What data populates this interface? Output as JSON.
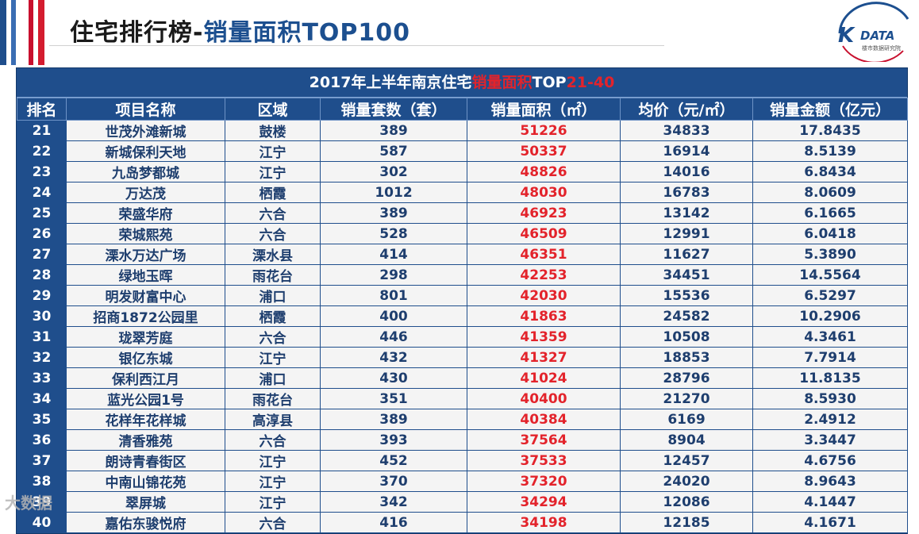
{
  "header": {
    "title_part1": "住宅排行榜-",
    "title_part2": "销量面积TOP100"
  },
  "logo": {
    "mark": "K",
    "word": "DATA",
    "subtitle": "楼市数据研究院"
  },
  "table": {
    "caption_part1": "2017年上半年南京住宅",
    "caption_part2": "销量面积",
    "caption_part3": "TOP",
    "caption_part4": "21-40",
    "columns": [
      "排名",
      "项目名称",
      "区域",
      "销量套数（套）",
      "销量面积（㎡）",
      "均价（元/㎡）",
      "销量金额（亿元）"
    ],
    "rows": [
      [
        "21",
        "世茂外滩新城",
        "鼓楼",
        "389",
        "51226",
        "34833",
        "17.8435"
      ],
      [
        "22",
        "新城保利天地",
        "江宁",
        "587",
        "50337",
        "16914",
        "8.5139"
      ],
      [
        "23",
        "九岛梦都城",
        "江宁",
        "302",
        "48826",
        "14016",
        "6.8434"
      ],
      [
        "24",
        "万达茂",
        "栖霞",
        "1012",
        "48030",
        "16783",
        "8.0609"
      ],
      [
        "25",
        "荣盛华府",
        "六合",
        "389",
        "46923",
        "13142",
        "6.1665"
      ],
      [
        "26",
        "荣城熙苑",
        "六合",
        "528",
        "46509",
        "12991",
        "6.0418"
      ],
      [
        "27",
        "溧水万达广场",
        "溧水县",
        "414",
        "46351",
        "11627",
        "5.3890"
      ],
      [
        "28",
        "绿地玉晖",
        "雨花台",
        "298",
        "42253",
        "34451",
        "14.5564"
      ],
      [
        "29",
        "明发财富中心",
        "浦口",
        "801",
        "42030",
        "15536",
        "6.5297"
      ],
      [
        "30",
        "招商1872公园里",
        "栖霞",
        "400",
        "41863",
        "24582",
        "10.2906"
      ],
      [
        "31",
        "珑翠芳庭",
        "六合",
        "446",
        "41359",
        "10508",
        "4.3461"
      ],
      [
        "32",
        "银亿东城",
        "江宁",
        "432",
        "41327",
        "18853",
        "7.7914"
      ],
      [
        "33",
        "保利西江月",
        "浦口",
        "430",
        "41024",
        "28796",
        "11.8135"
      ],
      [
        "34",
        "蓝光公园1号",
        "雨花台",
        "351",
        "40400",
        "21270",
        "8.5930"
      ],
      [
        "35",
        "花样年花样城",
        "高淳县",
        "389",
        "40384",
        "6169",
        "2.4912"
      ],
      [
        "36",
        "清香雅苑",
        "六合",
        "393",
        "37564",
        "8904",
        "3.3447"
      ],
      [
        "37",
        "朗诗青春街区",
        "江宁",
        "452",
        "37533",
        "12457",
        "4.6756"
      ],
      [
        "38",
        "中南山锦花苑",
        "江宁",
        "370",
        "37320",
        "24020",
        "8.9643"
      ],
      [
        "39",
        "翠屏城",
        "江宁",
        "342",
        "34294",
        "12086",
        "4.1447"
      ],
      [
        "40",
        "嘉佑东骏悦府",
        "六合",
        "416",
        "34198",
        "12185",
        "4.1671"
      ]
    ]
  },
  "watermark": "大数据",
  "colors": {
    "header_blue": "#1f4e8c",
    "accent_red": "#e3232b",
    "cell_bg": "#f4f4f4"
  }
}
